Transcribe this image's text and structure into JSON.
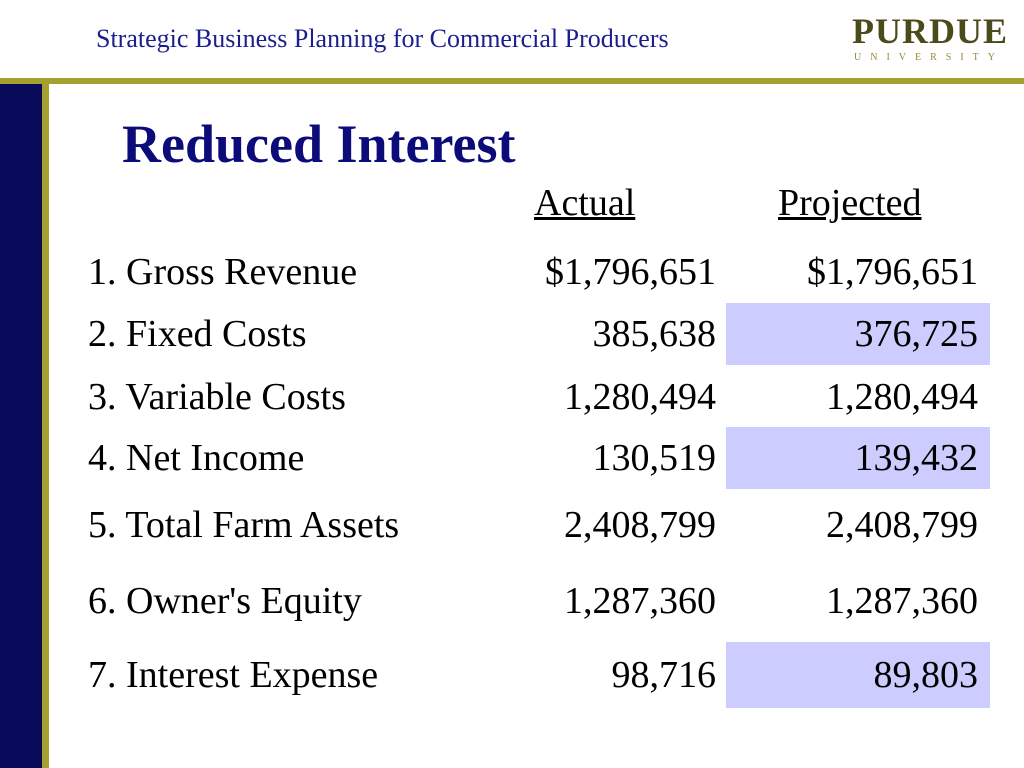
{
  "header": {
    "title": "Strategic Business Planning for Commercial Producers",
    "logo_main": "PURDUE",
    "logo_sub": "UNIVERSITY"
  },
  "slide": {
    "title": "Reduced Interest",
    "columns": {
      "actual": "Actual",
      "projected": "Projected"
    },
    "rows": [
      {
        "label": "1. Gross Revenue",
        "actual": "$1,796,651",
        "projected": "$1,796,651",
        "highlighted": false
      },
      {
        "label": "2. Fixed Costs",
        "actual": "385,638",
        "projected": "376,725",
        "highlighted": true
      },
      {
        "label": "3. Variable Costs",
        "actual": "1,280,494",
        "projected": "1,280,494",
        "highlighted": false
      },
      {
        "label": "4. Net Income",
        "actual": "130,519",
        "projected": "139,432",
        "highlighted": true
      },
      {
        "label": "5. Total Farm Assets",
        "actual": "2,408,799",
        "projected": "2,408,799",
        "highlighted": false
      },
      {
        "label": "6. Owner's Equity",
        "actual": "1,287,360",
        "projected": "1,287,360",
        "highlighted": false
      },
      {
        "label": "7. Interest Expense",
        "actual": "98,716",
        "projected": "89,803",
        "highlighted": true
      }
    ]
  },
  "colors": {
    "navy": "#0a0a5a",
    "gold": "#a5a02f",
    "title_blue": "#0b0b7a",
    "highlight": "#ccccff"
  }
}
